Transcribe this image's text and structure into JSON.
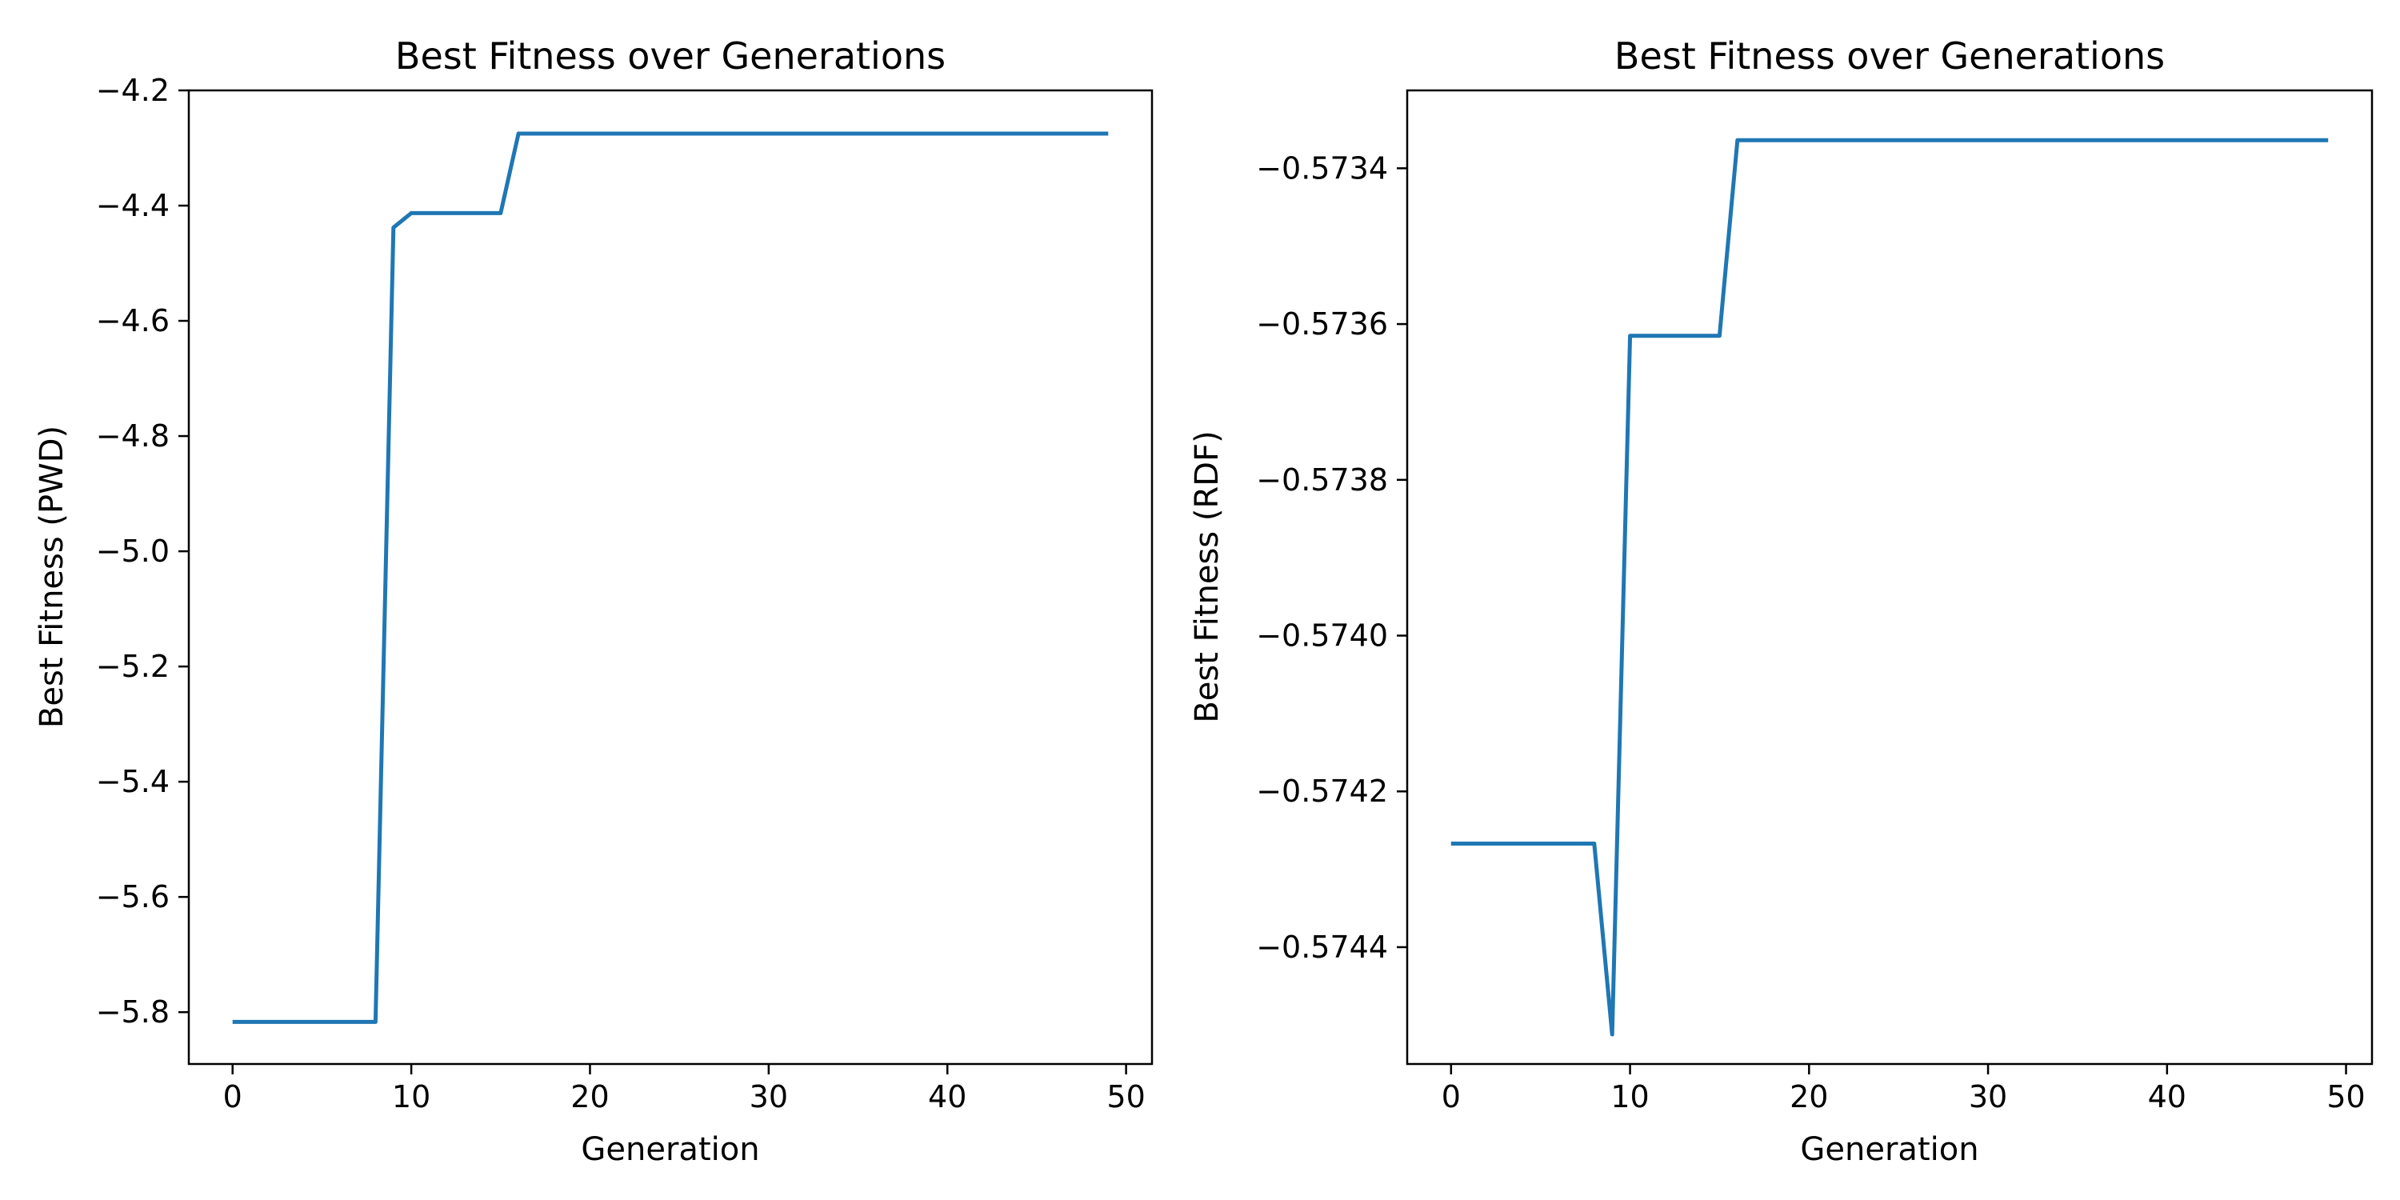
{
  "figure": {
    "colors": {
      "series": "#1f77b4"
    }
  },
  "chart_data": [
    {
      "type": "line",
      "title": "Best Fitness over Generations",
      "xlabel": "Generation",
      "ylabel": "Best Fitness (PWD)",
      "xlim": [
        -2.45,
        51.45
      ],
      "ylim": [
        -5.89,
        -4.2
      ],
      "xticks": [
        0,
        10,
        20,
        30,
        40,
        50
      ],
      "xtick_labels": [
        "0",
        "10",
        "20",
        "30",
        "40",
        "50"
      ],
      "yticks": [
        -5.8,
        -5.6,
        -5.4,
        -5.2,
        -5.0,
        -4.8,
        -4.6,
        -4.4,
        -4.2
      ],
      "ytick_labels": [
        "−5.8",
        "−5.6",
        "−5.4",
        "−5.2",
        "−5.0",
        "−4.8",
        "−4.6",
        "−4.4",
        "−4.2"
      ],
      "grid": false,
      "series": [
        {
          "color": "#1f77b4",
          "x": [
            0,
            1,
            2,
            3,
            4,
            5,
            6,
            7,
            8,
            9,
            10,
            11,
            12,
            13,
            14,
            15,
            16,
            17,
            18,
            19,
            20,
            21,
            22,
            23,
            24,
            25,
            26,
            27,
            28,
            29,
            30,
            31,
            32,
            33,
            34,
            35,
            36,
            37,
            38,
            39,
            40,
            41,
            42,
            43,
            44,
            45,
            46,
            47,
            48,
            49
          ],
          "y": [
            -5.817,
            -5.817,
            -5.817,
            -5.817,
            -5.817,
            -5.817,
            -5.817,
            -5.817,
            -5.817,
            -4.438,
            -4.413,
            -4.413,
            -4.413,
            -4.413,
            -4.413,
            -4.413,
            -4.275,
            -4.275,
            -4.275,
            -4.275,
            -4.275,
            -4.275,
            -4.275,
            -4.275,
            -4.275,
            -4.275,
            -4.275,
            -4.275,
            -4.275,
            -4.275,
            -4.275,
            -4.275,
            -4.275,
            -4.275,
            -4.275,
            -4.275,
            -4.275,
            -4.275,
            -4.275,
            -4.275,
            -4.275,
            -4.275,
            -4.275,
            -4.275,
            -4.275,
            -4.275,
            -4.275,
            -4.275,
            -4.275,
            -4.275
          ]
        }
      ]
    },
    {
      "type": "line",
      "title": "Best Fitness over Generations",
      "xlabel": "Generation",
      "ylabel": "Best Fitness (RDF)",
      "xlim": [
        -2.45,
        51.45
      ],
      "ylim": [
        -0.57455,
        -0.5733
      ],
      "xticks": [
        0,
        10,
        20,
        30,
        40,
        50
      ],
      "xtick_labels": [
        "0",
        "10",
        "20",
        "30",
        "40",
        "50"
      ],
      "yticks": [
        -0.5744,
        -0.5742,
        -0.574,
        -0.5738,
        -0.5736,
        -0.5734
      ],
      "ytick_labels": [
        "−0.5744",
        "−0.5742",
        "−0.5740",
        "−0.5738",
        "−0.5736",
        "−0.5734"
      ],
      "grid": false,
      "series": [
        {
          "color": "#1f77b4",
          "x": [
            0,
            1,
            2,
            3,
            4,
            5,
            6,
            7,
            8,
            9,
            10,
            11,
            12,
            13,
            14,
            15,
            16,
            17,
            18,
            19,
            20,
            21,
            22,
            23,
            24,
            25,
            26,
            27,
            28,
            29,
            30,
            31,
            32,
            33,
            34,
            35,
            36,
            37,
            38,
            39,
            40,
            41,
            42,
            43,
            44,
            45,
            46,
            47,
            48,
            49
          ],
          "y": [
            -0.574267,
            -0.574267,
            -0.574267,
            -0.574267,
            -0.574267,
            -0.574267,
            -0.574267,
            -0.574267,
            -0.574267,
            -0.574512,
            -0.573615,
            -0.573615,
            -0.573615,
            -0.573615,
            -0.573615,
            -0.573615,
            -0.573364,
            -0.573364,
            -0.573364,
            -0.573364,
            -0.573364,
            -0.573364,
            -0.573364,
            -0.573364,
            -0.573364,
            -0.573364,
            -0.573364,
            -0.573364,
            -0.573364,
            -0.573364,
            -0.573364,
            -0.573364,
            -0.573364,
            -0.573364,
            -0.573364,
            -0.573364,
            -0.573364,
            -0.573364,
            -0.573364,
            -0.573364,
            -0.573364,
            -0.573364,
            -0.573364,
            -0.573364,
            -0.573364,
            -0.573364,
            -0.573364,
            -0.573364,
            -0.573364,
            -0.573364
          ]
        }
      ]
    }
  ]
}
